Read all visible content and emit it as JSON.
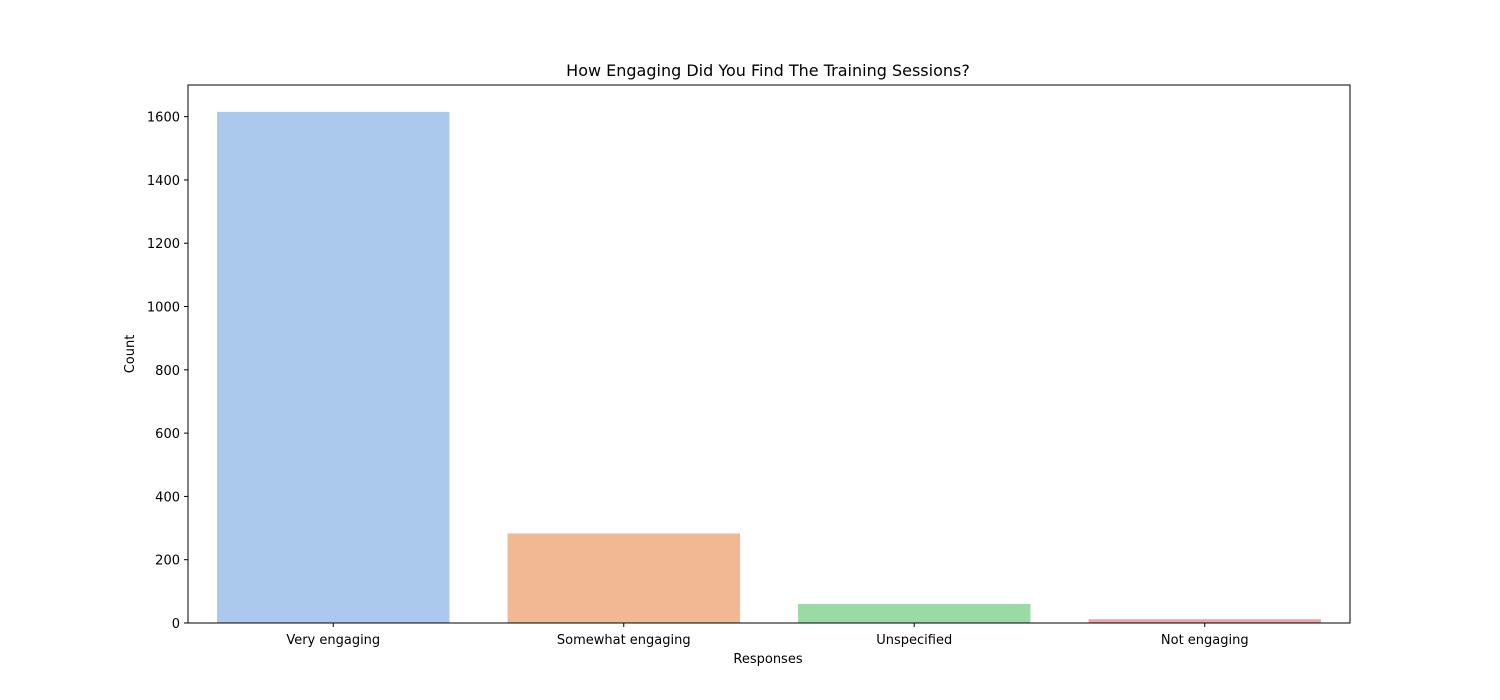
{
  "chart_data": {
    "type": "bar",
    "title": "How Engaging Did You Find The Training Sessions?",
    "xlabel": "Responses",
    "ylabel": "Count",
    "categories": [
      "Very engaging",
      "Somewhat engaging",
      "Unspecified",
      "Not engaging"
    ],
    "values": [
      1615,
      283,
      60,
      12
    ],
    "colors": [
      "#abc9ec",
      "#f1b993",
      "#98dba5",
      "#f0a3a3"
    ],
    "ylim": [
      0,
      1700
    ],
    "yticks": [
      0,
      200,
      400,
      600,
      800,
      1000,
      1200,
      1400,
      1600
    ],
    "grid": false,
    "legend": "none"
  }
}
